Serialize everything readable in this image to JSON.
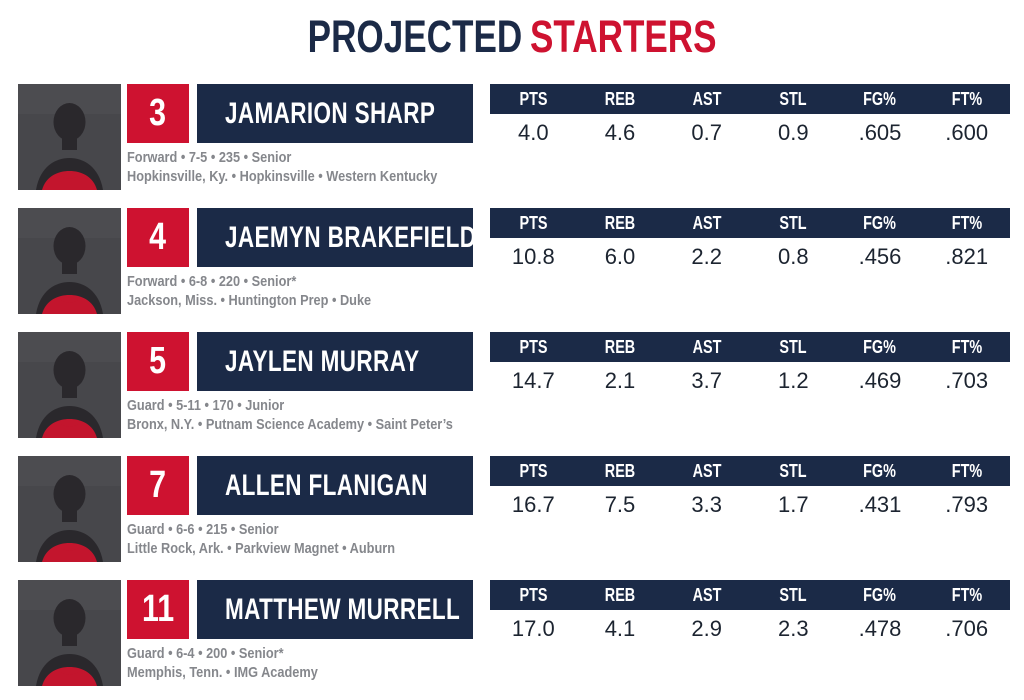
{
  "title": {
    "part1": "PROJECTED",
    "part2": "STARTERS"
  },
  "colors": {
    "navy": "#1b2a47",
    "red": "#ce1230",
    "bio-gray": "#85878c",
    "stat-value": "#1c2430",
    "photo-bg": "#47474b"
  },
  "stats_columns": [
    "PTS",
    "REB",
    "AST",
    "STL",
    "FG%",
    "FT%"
  ],
  "players": [
    {
      "number": "3",
      "name": "JAMARION SHARP",
      "bio1": "Forward • 7-5 • 235 • Senior",
      "bio2": "Hopkinsville, Ky. • Hopkinsville • Western Kentucky",
      "stats": [
        "4.0",
        "4.6",
        "0.7",
        "0.9",
        ".605",
        ".600"
      ]
    },
    {
      "number": "4",
      "name": "JAEMYN BRAKEFIELD",
      "bio1": "Forward • 6-8 • 220 • Senior*",
      "bio2": "Jackson, Miss. • Huntington Prep • Duke",
      "stats": [
        "10.8",
        "6.0",
        "2.2",
        "0.8",
        ".456",
        ".821"
      ]
    },
    {
      "number": "5",
      "name": "JAYLEN MURRAY",
      "bio1": "Guard • 5-11 • 170 • Junior",
      "bio2": "Bronx, N.Y. • Putnam Science Academy • Saint Peter’s",
      "stats": [
        "14.7",
        "2.1",
        "3.7",
        "1.2",
        ".469",
        ".703"
      ]
    },
    {
      "number": "7",
      "name": "ALLEN FLANIGAN",
      "bio1": "Guard • 6-6 • 215 • Senior",
      "bio2": "Little Rock, Ark. • Parkview Magnet • Auburn",
      "stats": [
        "16.7",
        "7.5",
        "3.3",
        "1.7",
        ".431",
        ".793"
      ]
    },
    {
      "number": "11",
      "name": "MATTHEW MURRELL",
      "bio1": "Guard • 6-4 • 200 • Senior*",
      "bio2": "Memphis, Tenn. • IMG Academy",
      "stats": [
        "17.0",
        "4.1",
        "2.9",
        "2.3",
        ".478",
        ".706"
      ]
    }
  ]
}
